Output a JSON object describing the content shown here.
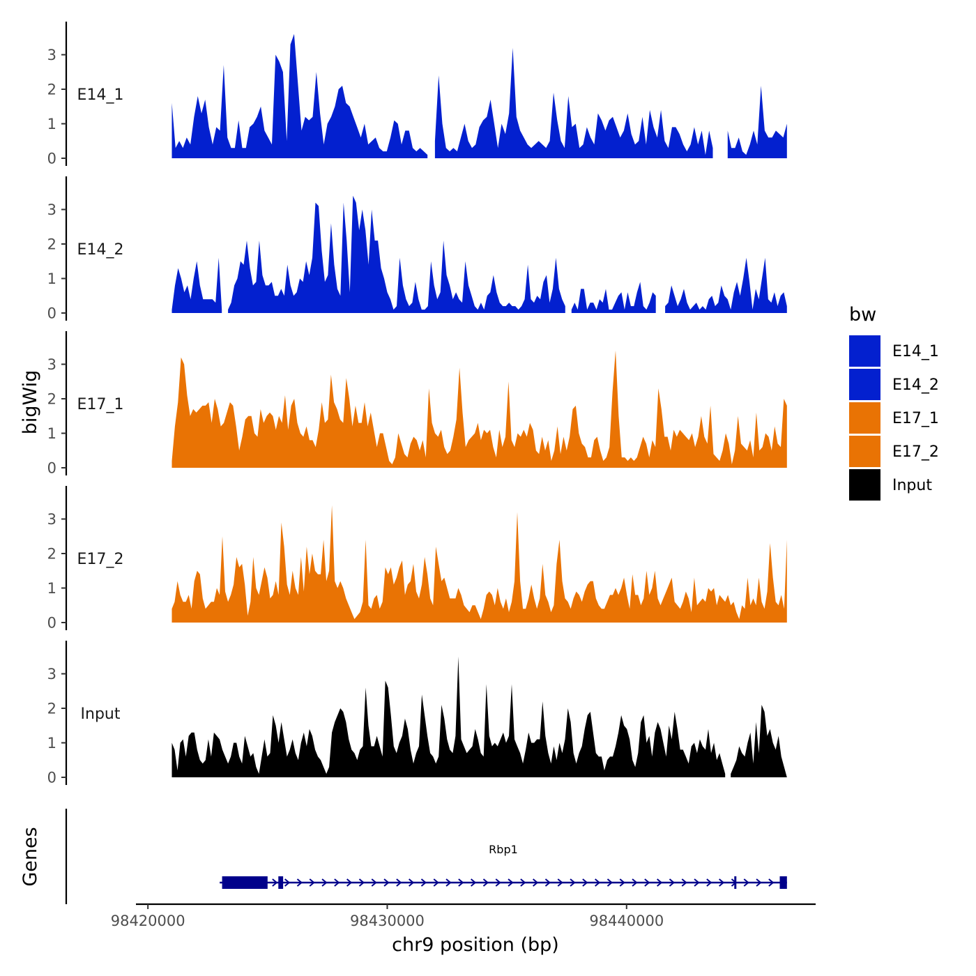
{
  "chart_data": {
    "type": "area",
    "xlabel": "chr9 position (bp)",
    "ylabel": "bigWig",
    "genes_label": "Genes",
    "x_range": [
      98421000,
      98446700
    ],
    "xlim": [
      98419500,
      98447900
    ],
    "x_ticks": [
      98420000,
      98430000,
      98440000
    ],
    "x_tick_labels": [
      "98420000",
      "98430000",
      "98440000"
    ],
    "y_range": [
      0,
      3.9
    ],
    "y_ticks": [
      0,
      1,
      2,
      3
    ],
    "y_tick_labels": [
      "0",
      "1",
      "2",
      "3"
    ],
    "legend": {
      "title": "bw",
      "entries": [
        {
          "name": "E14_1",
          "color": "#0320CF"
        },
        {
          "name": "E14_2",
          "color": "#0320CF"
        },
        {
          "name": "E17_1",
          "color": "#E97304"
        },
        {
          "name": "E17_2",
          "color": "#E97304"
        },
        {
          "name": "Input",
          "color": "#000000"
        }
      ]
    },
    "series": [
      {
        "name": "E14_1",
        "color": "#0320CF",
        "values": [
          1.6,
          0.3,
          0.5,
          0.3,
          0.6,
          0.4,
          1.2,
          1.8,
          1.3,
          1.7,
          0.9,
          0.4,
          0.9,
          0.8,
          2.7,
          0.6,
          0.3,
          0.3,
          1.1,
          0.3,
          0.3,
          0.9,
          1.0,
          1.2,
          1.5,
          0.8,
          0.6,
          0.4,
          3.0,
          2.8,
          2.5,
          0.5,
          3.3,
          3.6,
          2.2,
          0.8,
          1.2,
          1.1,
          1.2,
          2.5,
          1.3,
          0.4,
          1.0,
          1.2,
          1.5,
          2.0,
          2.1,
          1.6,
          1.5,
          1.2,
          0.9,
          0.6,
          1.0,
          0.4,
          0.5,
          0.6,
          0.3,
          0.2,
          0.2,
          0.6,
          1.1,
          1.0,
          0.4,
          0.8,
          0.8,
          0.3,
          0.2,
          0.3,
          0.2,
          0.1,
          null,
          0.5,
          2.4,
          1.0,
          0.3,
          0.2,
          0.3,
          0.2,
          0.6,
          1.0,
          0.5,
          0.3,
          0.4,
          0.9,
          1.1,
          1.2,
          1.7,
          1.0,
          0.3,
          1.0,
          0.7,
          1.3,
          3.2,
          1.2,
          0.8,
          0.6,
          0.4,
          0.3,
          0.4,
          0.5,
          0.4,
          0.3,
          0.5,
          1.9,
          1.1,
          0.5,
          0.3,
          1.8,
          0.9,
          1.0,
          0.3,
          0.4,
          0.9,
          0.6,
          0.4,
          1.3,
          1.1,
          0.8,
          1.1,
          1.2,
          0.9,
          0.6,
          0.8,
          1.3,
          0.7,
          0.4,
          0.5,
          1.2,
          0.4,
          1.4,
          0.9,
          0.6,
          1.4,
          0.5,
          0.3,
          0.9,
          0.9,
          0.7,
          0.4,
          0.2,
          0.4,
          0.9,
          0.4,
          0.8,
          0.1,
          0.8,
          0.3,
          null,
          null,
          null,
          0.8,
          0.3,
          0.3,
          0.6,
          0.2,
          0.1,
          0.4,
          0.8,
          0.4,
          2.1,
          0.8,
          0.6,
          0.6,
          0.8,
          0.7,
          0.6,
          1.0
        ]
      },
      {
        "name": "E14_2",
        "color": "#0320CF",
        "values": [
          0.1,
          0.8,
          1.3,
          1.0,
          0.6,
          0.8,
          0.4,
          1.0,
          1.5,
          0.8,
          0.4,
          0.4,
          0.4,
          0.4,
          0.3,
          1.6,
          0.1,
          null,
          0.1,
          0.3,
          0.8,
          1.0,
          1.5,
          1.4,
          2.1,
          1.3,
          0.8,
          0.9,
          2.1,
          1.1,
          0.8,
          0.8,
          0.9,
          0.5,
          0.5,
          0.7,
          0.5,
          1.4,
          0.8,
          0.5,
          0.6,
          1.0,
          0.9,
          1.5,
          1.1,
          1.6,
          3.2,
          3.1,
          1.8,
          0.9,
          1.1,
          2.6,
          1.4,
          0.7,
          0.5,
          3.2,
          2.1,
          0.6,
          3.4,
          3.2,
          2.4,
          3.0,
          2.4,
          1.4,
          3.0,
          2.1,
          2.1,
          1.3,
          1.0,
          0.6,
          0.4,
          0.1,
          0.2,
          1.6,
          0.8,
          0.4,
          0.2,
          0.3,
          0.9,
          0.4,
          0.1,
          0.1,
          0.2,
          1.5,
          0.8,
          0.4,
          0.6,
          2.1,
          1.1,
          0.8,
          0.4,
          0.6,
          0.4,
          0.3,
          1.5,
          0.8,
          0.5,
          0.2,
          0.1,
          0.3,
          0.1,
          0.5,
          0.6,
          1.1,
          0.6,
          0.3,
          0.2,
          0.2,
          0.3,
          0.2,
          0.2,
          0.1,
          0.2,
          0.4,
          1.4,
          0.4,
          0.3,
          0.5,
          0.4,
          0.9,
          1.1,
          0.3,
          0.7,
          1.6,
          0.7,
          0.4,
          0.2,
          null,
          0.1,
          0.3,
          0.1,
          0.7,
          0.7,
          0.1,
          0.3,
          0.3,
          0.1,
          0.4,
          0.3,
          0.7,
          0.1,
          0.1,
          0.3,
          0.5,
          0.6,
          0.1,
          0.6,
          0.2,
          0.2,
          0.6,
          0.9,
          0.2,
          0.1,
          0.3,
          0.6,
          0.5,
          null,
          null,
          0.2,
          0.3,
          0.8,
          0.5,
          0.2,
          0.4,
          0.7,
          0.3,
          0.1,
          0.2,
          0.3,
          0.1,
          0.2,
          0.1,
          0.4,
          0.5,
          0.2,
          0.3,
          0.8,
          0.5,
          0.4,
          0.1,
          0.6,
          0.9,
          0.5,
          1.0,
          1.6,
          0.9,
          0.1,
          0.7,
          0.4,
          1.0,
          1.6,
          0.4,
          0.3,
          0.6,
          0.2,
          0.5,
          0.6,
          0.2
        ]
      },
      {
        "name": "E17_1",
        "color": "#E97304",
        "values": [
          0.2,
          1.2,
          1.9,
          3.2,
          3.0,
          2.1,
          1.5,
          1.7,
          1.6,
          1.7,
          1.8,
          1.8,
          1.9,
          1.3,
          2.0,
          1.7,
          1.2,
          1.3,
          1.6,
          1.9,
          1.8,
          1.2,
          0.5,
          0.9,
          1.4,
          1.5,
          1.5,
          1.0,
          0.9,
          1.7,
          1.3,
          1.5,
          1.6,
          1.5,
          1.1,
          1.5,
          1.3,
          2.1,
          1.1,
          1.8,
          2.0,
          1.3,
          1.0,
          0.9,
          1.2,
          0.8,
          0.8,
          0.6,
          1.1,
          1.9,
          1.3,
          1.4,
          2.7,
          1.9,
          1.7,
          1.4,
          1.3,
          2.6,
          2.0,
          1.2,
          1.8,
          1.3,
          1.3,
          1.9,
          1.2,
          1.6,
          1.1,
          0.6,
          1.0,
          1.0,
          0.6,
          0.2,
          0.1,
          0.3,
          1.0,
          0.7,
          0.4,
          0.3,
          0.7,
          0.9,
          0.8,
          0.5,
          0.8,
          0.3,
          2.3,
          1.3,
          1.0,
          0.9,
          1.1,
          0.6,
          0.4,
          0.5,
          0.9,
          1.4,
          2.9,
          1.6,
          0.6,
          0.8,
          0.9,
          1.0,
          1.3,
          0.8,
          1.1,
          1.0,
          1.1,
          0.6,
          0.3,
          1.1,
          0.6,
          0.9,
          2.5,
          0.8,
          0.6,
          1.0,
          0.9,
          1.1,
          0.9,
          1.3,
          1.1,
          0.5,
          0.4,
          0.9,
          0.5,
          0.8,
          0.2,
          0.5,
          1.2,
          0.4,
          0.9,
          0.5,
          0.9,
          1.7,
          1.8,
          1.0,
          0.7,
          0.6,
          0.3,
          0.3,
          0.8,
          0.9,
          0.5,
          0.2,
          0.3,
          0.6,
          2.2,
          3.4,
          1.5,
          0.3,
          0.3,
          0.2,
          0.3,
          0.2,
          0.3,
          0.6,
          0.9,
          0.7,
          0.3,
          0.8,
          0.6,
          2.3,
          1.7,
          0.9,
          0.9,
          0.5,
          1.1,
          0.9,
          1.1,
          1.0,
          0.9,
          0.8,
          1.0,
          0.6,
          0.9,
          1.5,
          0.9,
          0.7,
          1.8,
          0.4,
          0.3,
          0.2,
          0.5,
          1.0,
          0.7,
          0.1,
          0.5,
          1.5,
          0.7,
          0.6,
          0.5,
          0.8,
          0.3,
          1.6,
          0.5,
          0.6,
          1.0,
          0.9,
          0.5,
          1.2,
          0.7,
          0.6,
          2.0,
          1.8
        ]
      },
      {
        "name": "E17_2",
        "color": "#E97304",
        "values": [
          0.4,
          0.6,
          1.2,
          0.8,
          0.6,
          0.6,
          0.8,
          0.4,
          1.2,
          1.5,
          1.4,
          0.7,
          0.4,
          0.5,
          0.6,
          0.6,
          1.0,
          0.8,
          2.5,
          0.9,
          0.6,
          0.8,
          1.1,
          1.9,
          1.6,
          1.7,
          1.1,
          0.2,
          0.6,
          1.9,
          1.0,
          0.8,
          1.2,
          1.6,
          1.3,
          0.7,
          0.8,
          1.2,
          0.8,
          2.9,
          2.2,
          1.1,
          0.8,
          1.5,
          1.0,
          0.8,
          1.9,
          0.9,
          2.2,
          1.4,
          2.0,
          1.5,
          1.4,
          1.4,
          2.4,
          1.2,
          1.5,
          3.4,
          1.2,
          1.0,
          1.2,
          1.0,
          0.7,
          0.5,
          0.3,
          0.1,
          0.2,
          0.3,
          0.6,
          2.4,
          0.5,
          0.4,
          0.7,
          0.8,
          0.4,
          0.6,
          1.6,
          1.4,
          1.6,
          1.1,
          1.3,
          1.6,
          1.8,
          0.8,
          1.1,
          1.2,
          1.7,
          0.9,
          0.7,
          1.1,
          1.9,
          1.4,
          0.7,
          0.5,
          2.2,
          1.7,
          1.2,
          1.3,
          1.0,
          0.7,
          0.7,
          0.7,
          1.0,
          0.8,
          0.5,
          0.4,
          0.3,
          0.5,
          0.5,
          0.3,
          0.1,
          0.4,
          0.8,
          0.9,
          0.8,
          0.5,
          1.0,
          0.6,
          0.4,
          0.7,
          0.3,
          0.6,
          1.2,
          3.2,
          1.2,
          0.4,
          0.4,
          0.7,
          1.1,
          0.7,
          0.4,
          0.7,
          1.7,
          0.8,
          0.6,
          0.3,
          0.5,
          1.7,
          2.4,
          1.2,
          0.7,
          0.6,
          0.4,
          0.7,
          0.9,
          0.8,
          0.6,
          0.9,
          1.1,
          1.2,
          1.2,
          0.7,
          0.5,
          0.4,
          0.4,
          0.6,
          0.8,
          0.8,
          1.0,
          0.8,
          1.0,
          1.3,
          0.8,
          0.4,
          1.4,
          0.8,
          0.8,
          0.5,
          0.7,
          1.5,
          0.8,
          1.0,
          1.5,
          0.7,
          0.5,
          0.7,
          0.9,
          1.1,
          1.3,
          0.6,
          0.5,
          0.4,
          0.6,
          0.9,
          0.7,
          0.3,
          1.3,
          0.5,
          0.6,
          0.7,
          0.6,
          1.0,
          0.9,
          1.0,
          0.5,
          0.8,
          0.7,
          0.6,
          0.8,
          0.5,
          0.6,
          0.3,
          0.1,
          0.5,
          0.4,
          1.3,
          0.5,
          0.7,
          0.5,
          1.3,
          0.6,
          0.4,
          0.9,
          2.3,
          1.3,
          0.6,
          0.5,
          0.8,
          0.4,
          2.4
        ]
      },
      {
        "name": "Input",
        "color": "#000000",
        "values": [
          1.0,
          0.8,
          0.2,
          1.0,
          1.1,
          0.6,
          1.2,
          1.3,
          1.3,
          0.8,
          0.5,
          0.4,
          0.5,
          1.1,
          0.6,
          1.3,
          1.2,
          1.1,
          0.8,
          0.6,
          0.4,
          0.6,
          1.0,
          1.0,
          0.6,
          0.4,
          1.2,
          0.9,
          0.6,
          0.7,
          0.3,
          0.1,
          0.6,
          1.1,
          0.6,
          0.7,
          1.8,
          1.5,
          1.0,
          1.6,
          1.1,
          0.6,
          0.8,
          1.1,
          0.7,
          0.5,
          1.0,
          1.3,
          0.9,
          1.4,
          1.2,
          0.8,
          0.6,
          0.5,
          0.3,
          0.1,
          0.3,
          1.3,
          1.6,
          1.8,
          2.0,
          1.9,
          1.6,
          1.1,
          0.8,
          0.7,
          0.5,
          0.8,
          0.9,
          2.6,
          1.5,
          0.9,
          0.9,
          1.2,
          0.9,
          0.6,
          2.8,
          2.6,
          1.8,
          0.9,
          0.7,
          1.0,
          1.2,
          1.7,
          1.4,
          0.8,
          0.4,
          0.7,
          0.9,
          2.4,
          1.8,
          1.2,
          0.7,
          0.6,
          0.4,
          0.6,
          2.1,
          1.7,
          1.1,
          0.8,
          0.7,
          1.2,
          3.5,
          1.1,
          0.9,
          0.7,
          0.8,
          0.9,
          1.4,
          1.1,
          0.7,
          0.6,
          2.7,
          1.2,
          0.9,
          1.0,
          0.9,
          1.1,
          1.3,
          1.0,
          1.2,
          2.7,
          1.1,
          0.9,
          0.7,
          0.4,
          0.8,
          1.3,
          1.0,
          1.0,
          1.1,
          1.1,
          2.2,
          1.2,
          0.7,
          0.4,
          0.9,
          0.5,
          1.0,
          0.7,
          1.1,
          2.0,
          1.6,
          0.7,
          0.4,
          0.7,
          0.9,
          1.4,
          1.8,
          1.9,
          1.3,
          0.7,
          0.6,
          0.6,
          0.2,
          0.5,
          0.6,
          0.6,
          0.9,
          1.3,
          1.8,
          1.5,
          1.4,
          1.1,
          0.5,
          0.3,
          0.7,
          1.6,
          1.8,
          1.0,
          1.2,
          0.6,
          1.3,
          1.6,
          1.4,
          1.0,
          0.6,
          1.5,
          1.1,
          1.9,
          1.4,
          0.8,
          0.8,
          0.6,
          0.4,
          0.9,
          1.0,
          0.7,
          1.1,
          0.9,
          0.8,
          1.4,
          0.7,
          1.0,
          0.5,
          0.7,
          0.4,
          0.1,
          null,
          0.1,
          0.3,
          0.5,
          0.9,
          0.7,
          0.6,
          1.0,
          1.3,
          0.4,
          1.6,
          0.7,
          2.1,
          1.9,
          1.2,
          1.4,
          1.0,
          0.8,
          1.2,
          0.6,
          0.3,
          0.0
        ]
      }
    ],
    "genes": [
      {
        "name": "Rbp1",
        "start": 98423000,
        "end": 98446700,
        "strand": "+",
        "exons": [
          [
            98423100,
            98425000
          ],
          [
            98425450,
            98425650
          ],
          [
            98444500,
            98444550
          ],
          [
            98446400,
            98446700
          ]
        ]
      }
    ]
  }
}
